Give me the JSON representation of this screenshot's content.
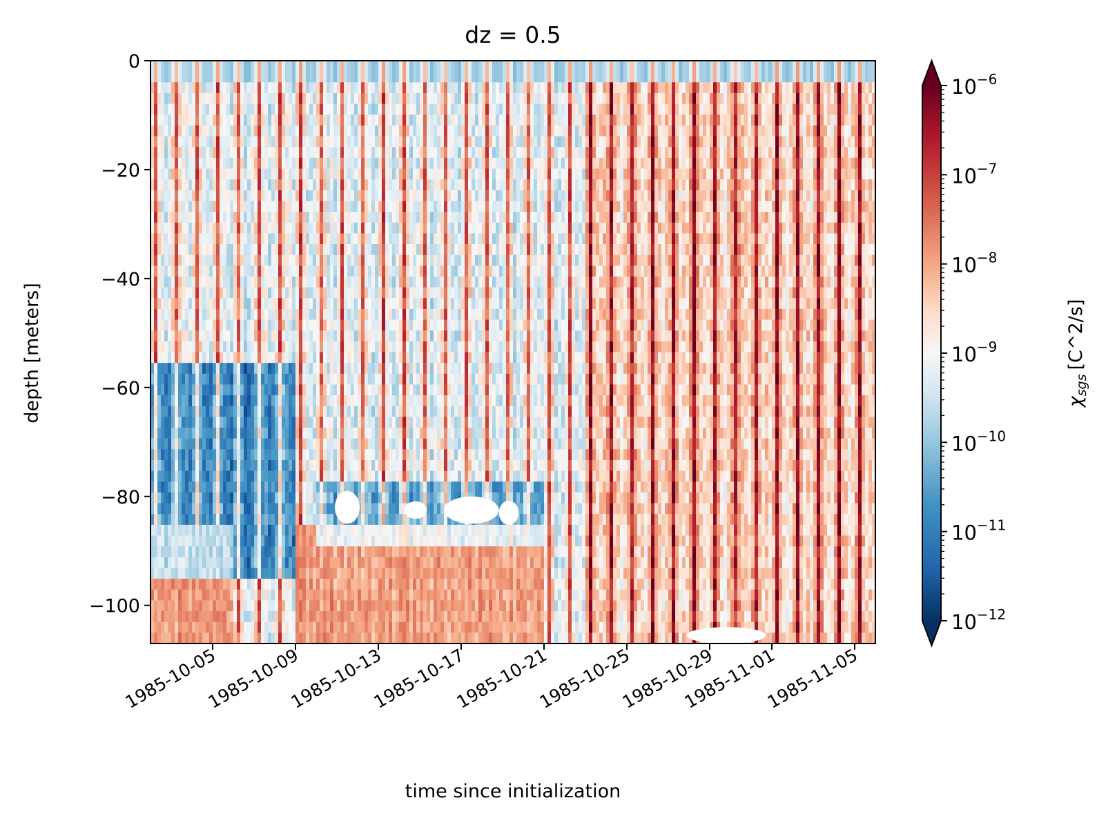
{
  "chart_data": {
    "type": "heatmap",
    "title": "dz = 0.5",
    "xlabel": "time since initialization",
    "ylabel": "depth [meters]",
    "x_ticks": [
      "1985-10-05",
      "1985-10-09",
      "1985-10-13",
      "1985-10-17",
      "1985-10-21",
      "1985-10-25",
      "1985-10-29",
      "1985-11-01",
      "1985-11-05"
    ],
    "x_range": [
      "1985-10-02",
      "1985-11-06"
    ],
    "y_ticks": [
      "0",
      "−20",
      "−40",
      "−60",
      "−80",
      "−100"
    ],
    "y_values": [
      0,
      -20,
      -40,
      -60,
      -80,
      -100
    ],
    "y_range": [
      -107,
      0
    ],
    "colorbar": {
      "label_symbol": "χ",
      "label_subscript": "sgs",
      "label_unit": "[C^2/s]",
      "scale": "log",
      "vmin": 1e-12,
      "vmax": 1e-06,
      "cmap": "RdBu_r",
      "extend": "both",
      "ticks": [
        {
          "base": "10",
          "exp": "−6"
        },
        {
          "base": "10",
          "exp": "−7"
        },
        {
          "base": "10",
          "exp": "−8"
        },
        {
          "base": "10",
          "exp": "−9"
        },
        {
          "base": "10",
          "exp": "−10"
        },
        {
          "base": "10",
          "exp": "−11"
        },
        {
          "base": "10",
          "exp": "−12"
        }
      ]
    },
    "colors": {
      "dark_red": "#67001f",
      "red": "#d6604d",
      "light_red": "#f4a582",
      "white": "#f7f7f7",
      "light_blue": "#92c5de",
      "blue": "#4393c3",
      "dark_blue": "#053061"
    },
    "grid": false,
    "legend": "none"
  }
}
